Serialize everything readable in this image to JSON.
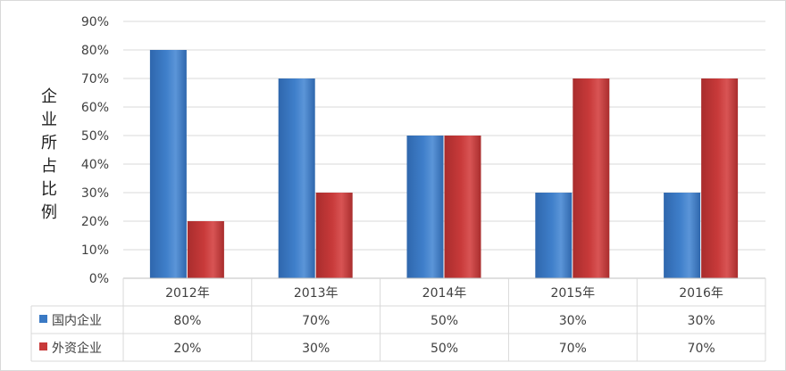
{
  "chart_data": {
    "type": "bar",
    "categories": [
      "2012年",
      "2013年",
      "2014年",
      "2015年",
      "2016年"
    ],
    "series": [
      {
        "name": "国内企业",
        "values": [
          80,
          70,
          50,
          30,
          30
        ],
        "color": "#3a79c4"
      },
      {
        "name": "外资企业",
        "values": [
          20,
          30,
          50,
          70,
          70
        ],
        "color": "#c83a3a"
      }
    ],
    "ylabel": "企业所占比例",
    "ylim": [
      0,
      90
    ],
    "yticks": [
      "0%",
      "10%",
      "20%",
      "30%",
      "40%",
      "50%",
      "60%",
      "70%",
      "80%",
      "90%"
    ],
    "table": {
      "rows": [
        {
          "label": "国内企业",
          "cells": [
            "80%",
            "70%",
            "50%",
            "30%",
            "30%"
          ]
        },
        {
          "label": "外资企业",
          "cells": [
            "20%",
            "30%",
            "50%",
            "70%",
            "70%"
          ]
        }
      ]
    },
    "grid": true,
    "legend": "data-table"
  }
}
